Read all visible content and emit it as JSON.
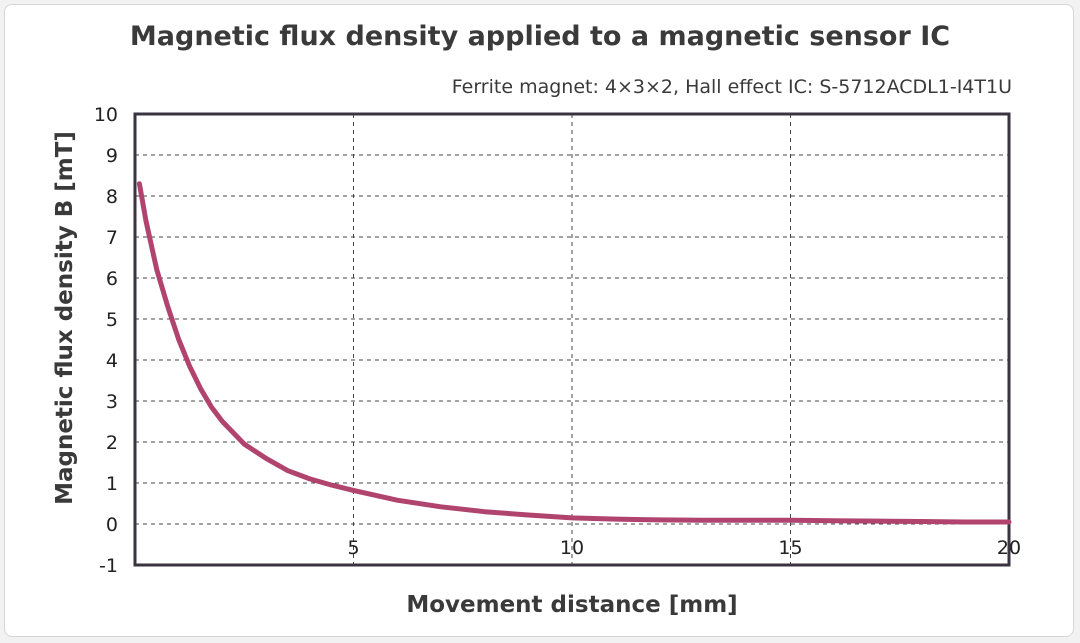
{
  "chart_data": {
    "type": "line",
    "title": "Magnetic flux density applied to a magnetic sensor IC",
    "subtitle": "Ferrite magnet: 4×3×2, Hall effect IC: S-5712ACDL1-I4T1U",
    "xlabel": "Movement distance [mm]",
    "ylabel": "Magnetic flux density B [mT]",
    "xlim": [
      0,
      20
    ],
    "ylim": [
      -1,
      10
    ],
    "x_ticks": [
      "5",
      "10",
      "15",
      "20"
    ],
    "y_ticks": [
      "10",
      "9",
      "8",
      "7",
      "6",
      "5",
      "4",
      "3",
      "2",
      "1",
      "0",
      "-1"
    ],
    "grid": true,
    "series": [
      {
        "color": "#b0446e",
        "x": [
          0.1,
          0.25,
          0.5,
          0.75,
          1,
          1.25,
          1.5,
          1.75,
          2,
          2.5,
          3,
          3.5,
          4,
          4.5,
          5,
          5.5,
          6,
          7,
          8,
          9,
          10,
          11,
          12,
          13,
          14,
          15,
          16,
          17,
          18,
          19,
          20
        ],
        "y": [
          8.3,
          7.4,
          6.2,
          5.3,
          4.5,
          3.85,
          3.3,
          2.85,
          2.5,
          1.95,
          1.6,
          1.3,
          1.1,
          0.95,
          0.82,
          0.7,
          0.58,
          0.42,
          0.3,
          0.22,
          0.15,
          0.12,
          0.1,
          0.09,
          0.09,
          0.09,
          0.08,
          0.07,
          0.06,
          0.05,
          0.05
        ]
      }
    ]
  }
}
